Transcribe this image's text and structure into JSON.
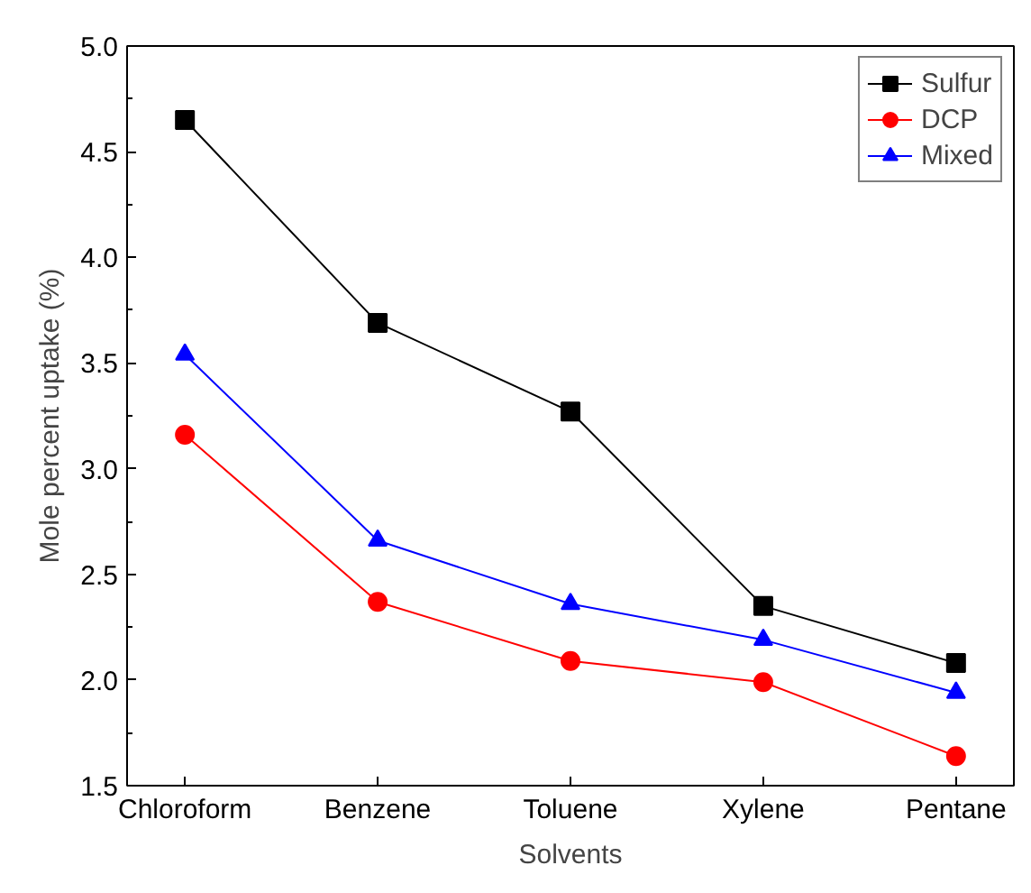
{
  "chart_data": {
    "type": "line",
    "xlabel": "Solvents",
    "ylabel": "Mole percent uptake (%)",
    "categories": [
      "Chloroform",
      "Benzene",
      "Toluene",
      "Xylene",
      "Pentane"
    ],
    "series": [
      {
        "name": "Sulfur",
        "color": "#000000",
        "marker": "square",
        "values": [
          4.65,
          3.69,
          3.27,
          2.35,
          2.08
        ]
      },
      {
        "name": "DCP",
        "color": "#ff0000",
        "marker": "circle",
        "values": [
          3.16,
          2.37,
          2.09,
          1.99,
          1.64
        ]
      },
      {
        "name": "Mixed",
        "color": "#0000ff",
        "marker": "triangle",
        "values": [
          3.54,
          2.66,
          2.36,
          2.19,
          1.94
        ]
      }
    ],
    "ylim": [
      1.5,
      5.0
    ],
    "yticks": [
      1.5,
      {
        "value": 2,
        "label": "2.0"
      },
      2.5,
      {
        "value": 3,
        "label": "3.0"
      },
      3.5,
      {
        "value": 4,
        "label": "4.0"
      },
      4.5,
      {
        "value": 5,
        "label": "5.0"
      }
    ],
    "grid": false,
    "legend": "top right",
    "line_style": "solid"
  }
}
